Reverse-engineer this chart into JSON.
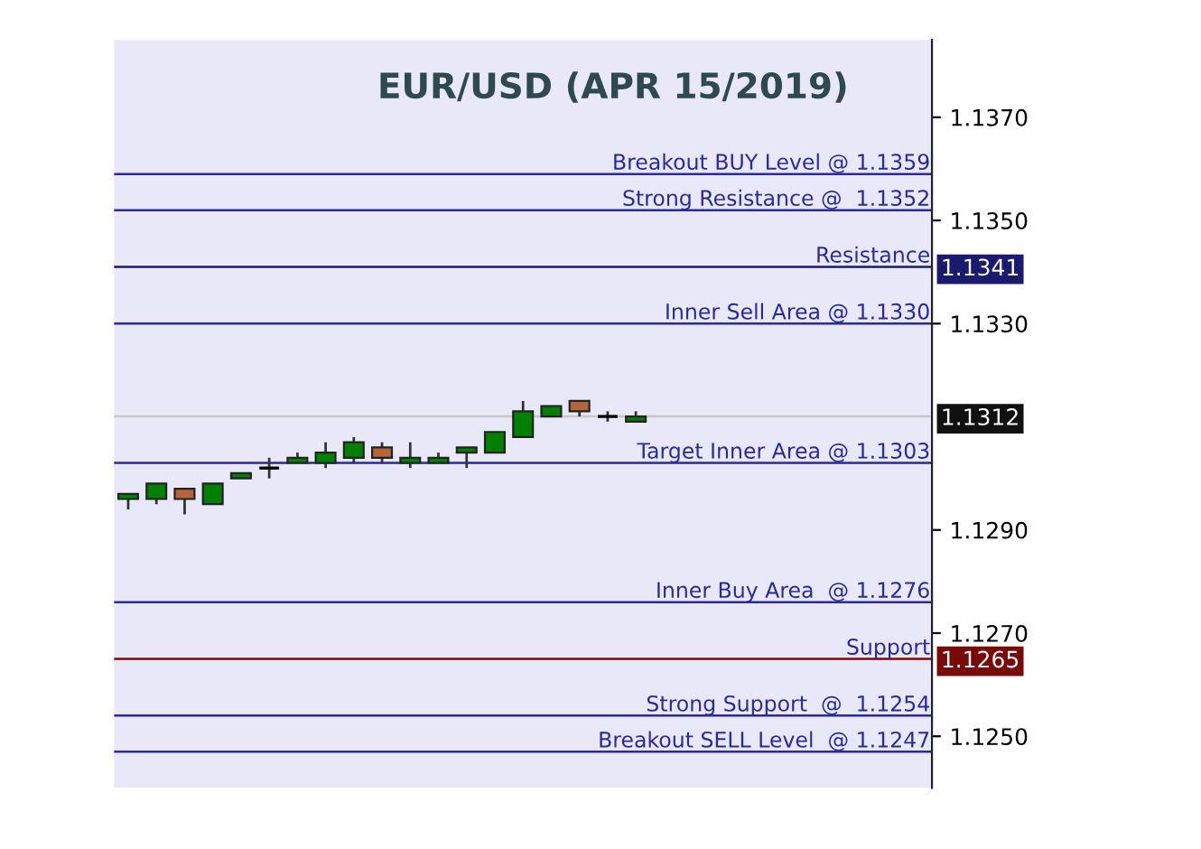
{
  "chart_data": {
    "type": "candlestick",
    "title": "EUR/USD (APR 15/2019)",
    "categories": [
      null,
      null,
      null,
      null,
      null,
      null,
      null,
      null,
      null,
      null,
      null,
      null,
      null,
      null,
      null,
      null,
      null,
      null,
      null,
      null,
      null,
      null,
      null,
      null,
      null,
      null,
      null,
      null,
      null
    ],
    "ohlc": [
      [
        1.1296,
        1.1297,
        1.1294,
        1.1297
      ],
      [
        1.1296,
        1.1299,
        1.1295,
        1.1299
      ],
      [
        1.1298,
        1.1298,
        1.1293,
        1.1296
      ],
      [
        1.1295,
        1.1299,
        1.1295,
        1.1299
      ],
      [
        1.13,
        1.1301,
        1.13,
        1.1301
      ],
      [
        1.1302,
        1.1304,
        1.13,
        1.1302
      ],
      [
        1.1303,
        1.1305,
        1.1303,
        1.1304
      ],
      [
        1.1303,
        1.1307,
        1.1302,
        1.1305
      ],
      [
        1.1304,
        1.1308,
        1.1303,
        1.1307
      ],
      [
        1.1306,
        1.1307,
        1.1303,
        1.1304
      ],
      [
        1.1303,
        1.1307,
        1.1302,
        1.1304
      ],
      [
        1.1303,
        1.1305,
        1.1303,
        1.1304
      ],
      [
        1.1305,
        1.1306,
        1.1302,
        1.1306
      ],
      [
        1.1305,
        1.1309,
        1.1305,
        1.1309
      ],
      [
        1.1308,
        1.1315,
        1.1308,
        1.1313
      ],
      [
        1.1312,
        1.1314,
        1.1312,
        1.1314
      ],
      [
        1.1315,
        1.1315,
        1.1312,
        1.1313
      ],
      [
        1.1312,
        1.1313,
        1.1311,
        1.1312
      ],
      [
        1.1311,
        1.1313,
        1.1311,
        1.1312
      ],
      null,
      null,
      null,
      null,
      null,
      null,
      null,
      null,
      null,
      null
    ],
    "colors": [
      "#008000",
      "#008000",
      "#b5653a",
      "#008000",
      "#008000",
      "#000000",
      "#008000",
      "#008000",
      "#008000",
      "#b5653a",
      "#008000",
      "#008000",
      "#008000",
      "#008000",
      "#008000",
      "#008000",
      "#b5653a",
      "#000000",
      "#008000",
      null,
      null,
      null,
      null,
      null,
      null,
      null,
      null,
      null,
      null
    ],
    "ylim": [
      1.124,
      1.1385
    ],
    "yticks": [
      {
        "value": 1.125,
        "label": "1.1250"
      },
      {
        "value": 1.127,
        "label": "1.1270"
      },
      {
        "value": 1.129,
        "label": "1.1290"
      },
      {
        "value": 1.133,
        "label": "1.1330"
      },
      {
        "value": 1.135,
        "label": "1.1350"
      },
      {
        "value": 1.137,
        "label": "1.1370"
      }
    ],
    "y2lim": [
      1.124,
      1.1385
    ],
    "y2ticks": [
      {
        "value": 1.1341,
        "label": "1.1341"
      },
      {
        "value": 1.1312,
        "label": "1.1312"
      },
      {
        "value": 1.1265,
        "label": "1.1265"
      }
    ],
    "ref_lines": [
      {
        "axis": "y",
        "value": 1.1359,
        "label": "Breakout BUY Level @ 1.1359",
        "color": "#2a2aa0"
      },
      {
        "axis": "y",
        "value": 1.1352,
        "label": "Strong Resistance @  1.1352",
        "color": "#2a2aa0"
      },
      {
        "axis": "y",
        "value": 1.1341,
        "label": "Resistance",
        "color": "#1a1a6e"
      },
      {
        "axis": "y",
        "value": 1.133,
        "label": "Inner Sell Area @ 1.1330",
        "color": "#2a2aa0"
      },
      {
        "axis": "y",
        "value": 1.1312,
        "label": null,
        "color": "#c8c8c8"
      },
      {
        "axis": "y",
        "value": 1.1303,
        "label": "Target Inner Area @ 1.1303",
        "color": "#2a2aa0"
      },
      {
        "axis": "y",
        "value": 1.1276,
        "label": "Inner Buy Area  @ 1.1276",
        "color": "#2a2aa0"
      },
      {
        "axis": "y",
        "value": 1.1265,
        "label": "Support",
        "color": "#7a0a0a"
      },
      {
        "axis": "y",
        "value": 1.1254,
        "label": "Strong Support  @  1.1254",
        "color": "#2a2aa0"
      },
      {
        "axis": "y",
        "value": 1.1247,
        "label": "Breakout SELL Level  @ 1.1247",
        "color": "#2a2aa0"
      }
    ]
  }
}
